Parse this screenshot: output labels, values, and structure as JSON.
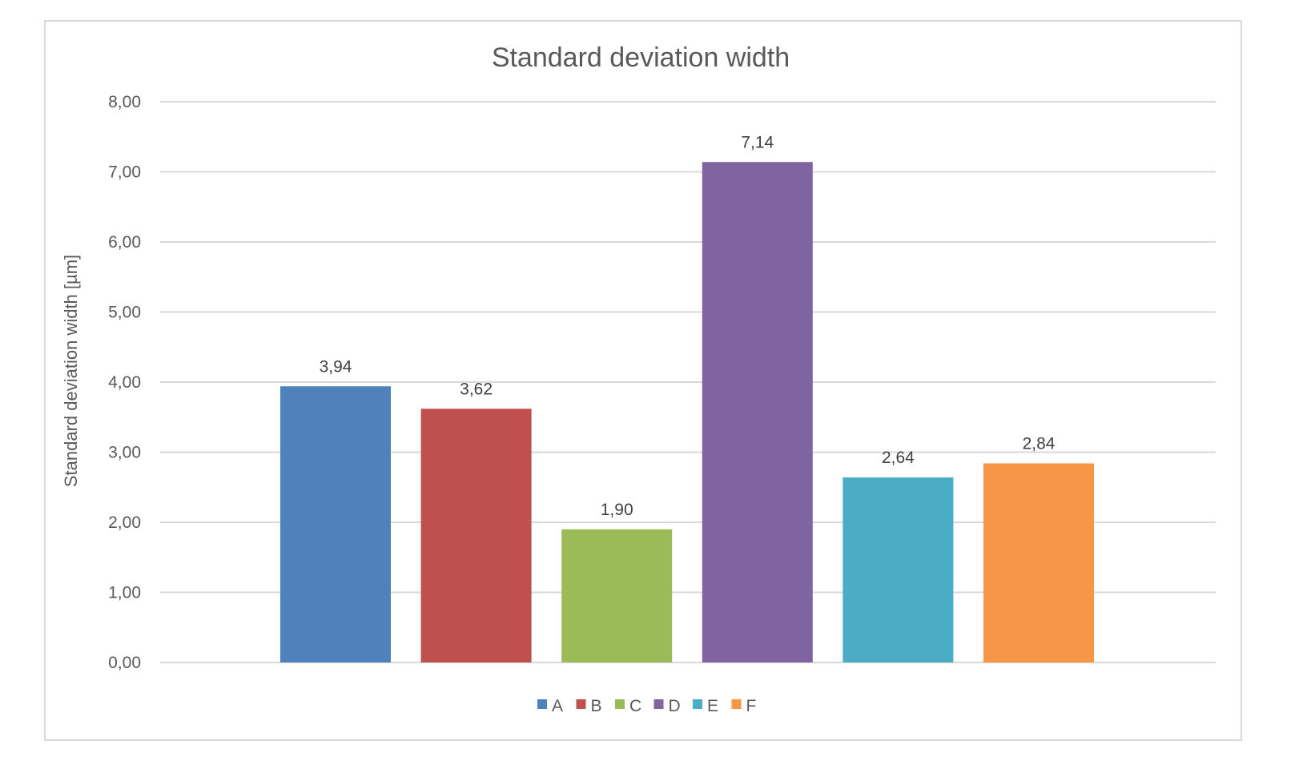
{
  "chart_data": {
    "type": "bar",
    "title": "Standard deviation width",
    "ylabel": "Standard deviation width [µm]",
    "xlabel": "",
    "ylim": [
      0,
      8
    ],
    "yticks": [
      "0,00",
      "1,00",
      "2,00",
      "3,00",
      "4,00",
      "5,00",
      "6,00",
      "7,00",
      "8,00"
    ],
    "grid": true,
    "legend_position": "bottom",
    "series": [
      {
        "name": "A",
        "value": 3.94,
        "label": "3,94",
        "color": "#4f81bd"
      },
      {
        "name": "B",
        "value": 3.62,
        "label": "3,62",
        "color": "#c0504d"
      },
      {
        "name": "C",
        "value": 1.9,
        "label": "1,90",
        "color": "#9bbb59"
      },
      {
        "name": "D",
        "value": 7.14,
        "label": "7,14",
        "color": "#8064a2"
      },
      {
        "name": "E",
        "value": 2.64,
        "label": "2,64",
        "color": "#4bacc6"
      },
      {
        "name": "F",
        "value": 2.84,
        "label": "2,84",
        "color": "#f79646"
      }
    ]
  }
}
